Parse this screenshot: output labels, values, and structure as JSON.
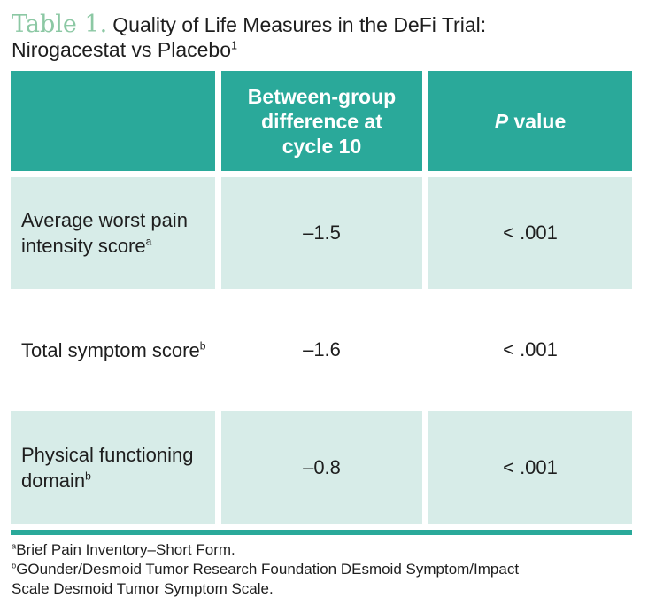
{
  "title": {
    "label": "Table 1.",
    "line1": "Quality of Life Measures in the DeFi Trial:",
    "line2": "Nirogacestat vs Placebo",
    "line2_sup": "1"
  },
  "table": {
    "headers": {
      "col1": "",
      "col2": "Between-group difference at cycle 10",
      "col3_italic": "P",
      "col3_rest": " value"
    },
    "rows": [
      {
        "label": "Average worst pain intensity score",
        "sup": "a",
        "difference": "–1.5",
        "p_value": "< .001"
      },
      {
        "label": "Total symptom score",
        "sup": "b",
        "difference": "–1.6",
        "p_value": "< .001"
      },
      {
        "label": "Physical functioning domain",
        "sup": "b",
        "difference": "–0.8",
        "p_value": "< .001"
      }
    ]
  },
  "footnotes": {
    "a_marker": "a",
    "a_text": "Brief Pain Inventory–Short Form.",
    "b_marker": "b",
    "b_text_line1": "GOunder/Desmoid Tumor Research Foundation DEsmoid Symptom/Impact",
    "b_text_line2": "Scale Desmoid Tumor Symptom Scale."
  },
  "colors": {
    "header_teal": "#2aa99a",
    "row_shade": "#d7ece8",
    "title_label_green": "#8cc8a4"
  }
}
